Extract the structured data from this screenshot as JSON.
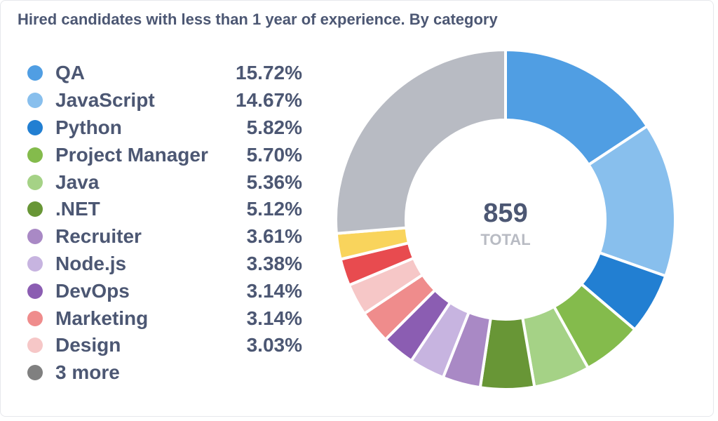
{
  "title": "Hired candidates with less than 1 year of experience. By category",
  "legend": [
    {
      "label": "QA",
      "pct": "15.72%",
      "color": "#509ee3"
    },
    {
      "label": "JavaScript",
      "pct": "14.67%",
      "color": "#88bfed"
    },
    {
      "label": "Python",
      "pct": "5.82%",
      "color": "#227fd2"
    },
    {
      "label": "Project Manager",
      "pct": "5.70%",
      "color": "#84bb4c"
    },
    {
      "label": "Java",
      "pct": "5.36%",
      "color": "#a5d286"
    },
    {
      "label": ".NET",
      "pct": "5.12%",
      "color": "#689636"
    },
    {
      "label": "Recruiter",
      "pct": "3.61%",
      "color": "#a989c5"
    },
    {
      "label": "Node.js",
      "pct": "3.38%",
      "color": "#c7b4e0"
    },
    {
      "label": "DevOps",
      "pct": "3.14%",
      "color": "#8b5db2"
    },
    {
      "label": "Marketing",
      "pct": "3.14%",
      "color": "#ef8c8c"
    },
    {
      "label": "Design",
      "pct": "3.03%",
      "color": "#f6c7c7"
    },
    {
      "label": "3 more",
      "pct": "",
      "color": "#808080"
    }
  ],
  "center": {
    "value": "859",
    "label": "TOTAL"
  },
  "chart_data": {
    "type": "pie",
    "title": "Hired candidates with less than 1 year of experience. By category",
    "total": 859,
    "donut": true,
    "slices": [
      {
        "label": "QA",
        "value": 15.72,
        "color": "#509ee3"
      },
      {
        "label": "JavaScript",
        "value": 14.67,
        "color": "#88bfed"
      },
      {
        "label": "Python",
        "value": 5.82,
        "color": "#227fd2"
      },
      {
        "label": "Project Manager",
        "value": 5.7,
        "color": "#84bb4c"
      },
      {
        "label": "Java",
        "value": 5.36,
        "color": "#a5d286"
      },
      {
        "label": ".NET",
        "value": 5.12,
        "color": "#689636"
      },
      {
        "label": "Recruiter",
        "value": 3.61,
        "color": "#a989c5"
      },
      {
        "label": "Node.js",
        "value": 3.38,
        "color": "#c7b4e0"
      },
      {
        "label": "DevOps",
        "value": 3.14,
        "color": "#8b5db2"
      },
      {
        "label": "Marketing",
        "value": 3.14,
        "color": "#ef8c8c"
      },
      {
        "label": "Design",
        "value": 3.03,
        "color": "#f6c7c7"
      },
      {
        "label": "",
        "value": 2.56,
        "color": "#e84b4f"
      },
      {
        "label": "",
        "value": 2.45,
        "color": "#f9d45c"
      },
      {
        "label": "",
        "value": 26.3,
        "color": "#b8bbc3"
      }
    ],
    "legend_position": "left"
  }
}
